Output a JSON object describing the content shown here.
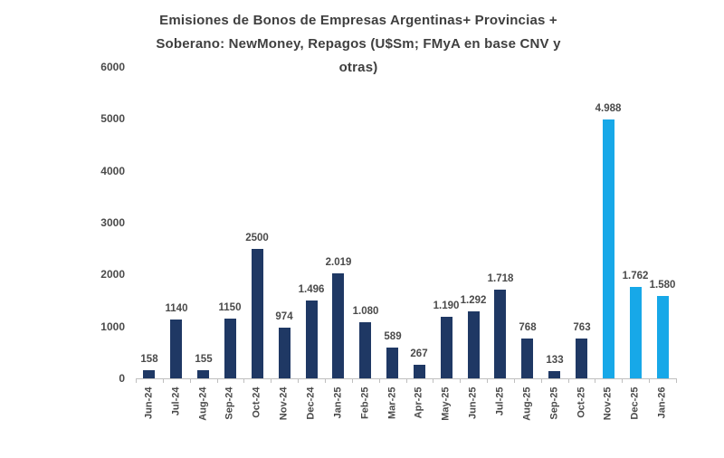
{
  "title": {
    "text": "Emisiones de Bonos de Empresas Argentinas+ Provincias + Soberano: NewMoney, Repagos (U$Sm; FMyA en base CNV y otras)"
  },
  "chart_data": {
    "type": "bar",
    "title": "Emisiones de Bonos de Empresas Argentinas+ Provincias + Soberano: NewMoney, Repagos (U$Sm; FMyA en base CNV y otras)",
    "categories": [
      "Jun-24",
      "Jul-24",
      "Aug-24",
      "Sep-24",
      "Oct-24",
      "Nov-24",
      "Dec-24",
      "Jan-25",
      "Feb-25",
      "Mar-25",
      "Apr-25",
      "May-25",
      "Jun-25",
      "Jul-25",
      "Aug-25",
      "Sep-25",
      "Oct-25",
      "Nov-25",
      "Dec-25",
      "Jan-26"
    ],
    "values": [
      158,
      1140,
      155,
      1150,
      2500,
      974,
      1496,
      2019,
      1080,
      589,
      267,
      1190,
      1292,
      1718,
      768,
      133,
      763,
      4988,
      1762,
      1580
    ],
    "value_labels": [
      "158",
      "1140",
      "155",
      "1150",
      "2500",
      "974",
      "1.496",
      "2.019",
      "1.080",
      "589",
      "267",
      "1.190",
      "1.292",
      "1.718",
      "768",
      "133",
      "763",
      "4.988",
      "1.762",
      "1.580"
    ],
    "xlabel": "",
    "ylabel": "",
    "ylim": [
      0,
      6000
    ],
    "yticks": [
      0,
      1000,
      2000,
      3000,
      4000,
      5000,
      6000
    ],
    "grid": false,
    "legend": "none",
    "bar_color_default": "#1F3864",
    "bar_color_highlight": "#17A8E8",
    "highlight_indices": [
      17,
      18,
      19
    ],
    "label_color": "#4a4a4a",
    "axis_color": "#bfbfbf"
  }
}
